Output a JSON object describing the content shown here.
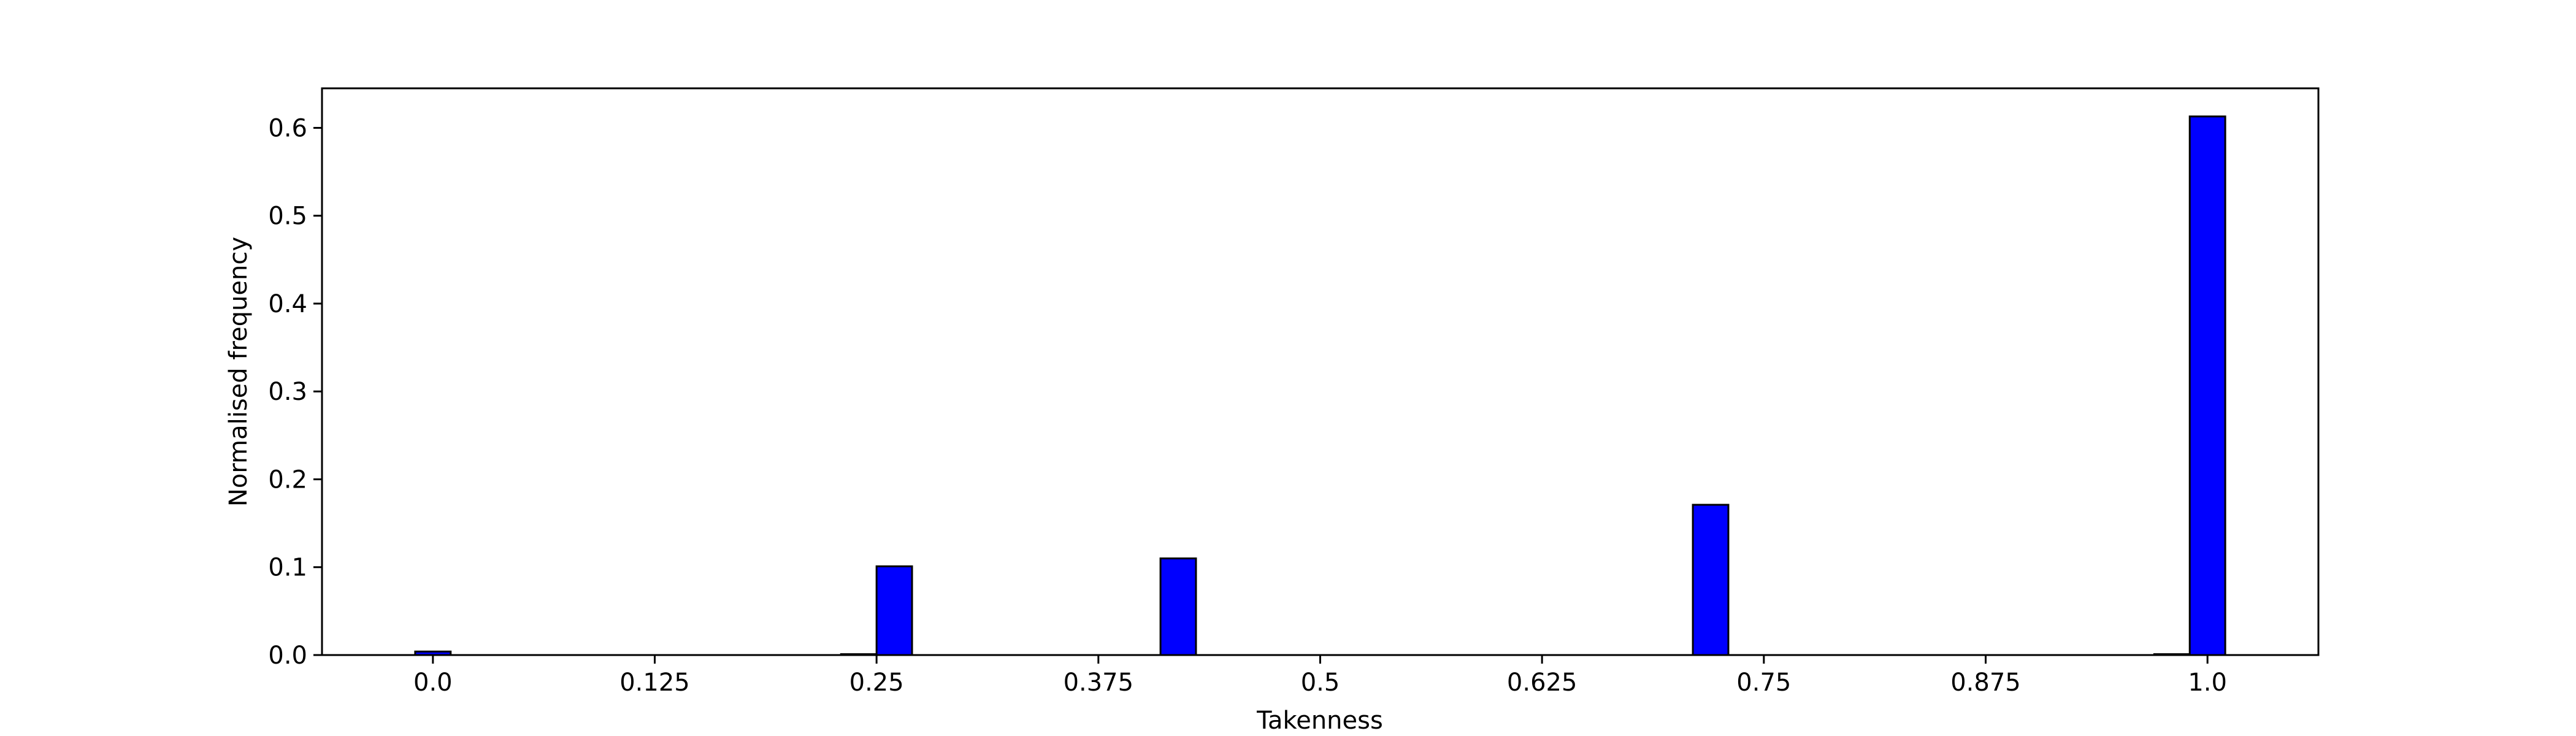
{
  "chart_data": {
    "type": "bar",
    "title": "",
    "xlabel": "Takenness",
    "ylabel": "Normalised frequency",
    "xlim": [
      -0.0625,
      1.0625
    ],
    "ylim": [
      0,
      0.645
    ],
    "x_ticks": [
      {
        "value": 0.0,
        "label": "0.0"
      },
      {
        "value": 0.125,
        "label": "0.125"
      },
      {
        "value": 0.25,
        "label": "0.25"
      },
      {
        "value": 0.375,
        "label": "0.375"
      },
      {
        "value": 0.5,
        "label": "0.5"
      },
      {
        "value": 0.625,
        "label": "0.625"
      },
      {
        "value": 0.75,
        "label": "0.75"
      },
      {
        "value": 0.875,
        "label": "0.875"
      },
      {
        "value": 1.0,
        "label": "1.0"
      }
    ],
    "y_ticks": [
      {
        "value": 0.0,
        "label": "0.0"
      },
      {
        "value": 0.1,
        "label": "0.1"
      },
      {
        "value": 0.2,
        "label": "0.2"
      },
      {
        "value": 0.3,
        "label": "0.3"
      },
      {
        "value": 0.4,
        "label": "0.4"
      },
      {
        "value": 0.5,
        "label": "0.5"
      },
      {
        "value": 0.6,
        "label": "0.6"
      }
    ],
    "bins": {
      "start": -0.01,
      "width": 0.02,
      "count": 51
    },
    "values": [
      0.004,
      0,
      0,
      0,
      0,
      0,
      0,
      0,
      0,
      0,
      0,
      0,
      0.001,
      0.101,
      0,
      0,
      0,
      0,
      0,
      0,
      0,
      0.11,
      0,
      0,
      0,
      0,
      0,
      0,
      0,
      0,
      0,
      0,
      0,
      0,
      0,
      0,
      0.171,
      0,
      0,
      0,
      0,
      0,
      0,
      0,
      0,
      0,
      0,
      0,
      0,
      0.001,
      0.613
    ],
    "colors": {
      "bar_fill": "#0000ff",
      "bar_edge": "#000000",
      "axes": "#000000"
    },
    "grid": false,
    "legend": "none"
  }
}
